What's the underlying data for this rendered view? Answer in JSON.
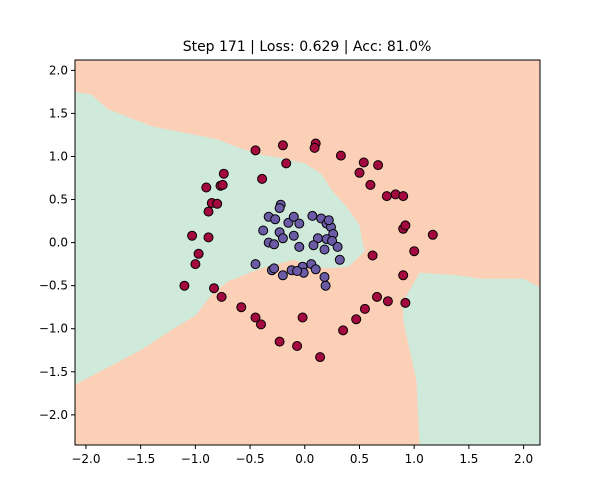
{
  "chart_data": {
    "type": "scatter",
    "title": "Step 171 | Loss: 0.629 | Acc: 81.0%",
    "xlabel": "",
    "ylabel": "",
    "xlim": [
      -2.1,
      2.15
    ],
    "ylim": [
      -2.35,
      2.12
    ],
    "xticks": [
      -2.0,
      -1.5,
      -1.0,
      -0.5,
      0.0,
      0.5,
      1.0,
      1.5,
      2.0
    ],
    "xtick_labels": [
      "−2.0",
      "−1.5",
      "−1.0",
      "−0.5",
      "0.0",
      "0.5",
      "1.0",
      "1.5",
      "2.0"
    ],
    "yticks": [
      2.0,
      1.5,
      1.0,
      0.5,
      0.0,
      -0.5,
      -1.0,
      -1.5,
      -2.0
    ],
    "ytick_labels": [
      "2.0",
      "1.5",
      "1.0",
      "0.5",
      "0.0",
      "−0.5",
      "−1.0",
      "−1.5",
      "−2.0"
    ],
    "grid": false,
    "colors": {
      "region_outer": "#fbd0b7",
      "region_inner": "#cfeadb",
      "class_outer": "#a3093f",
      "class_inner": "#6b5ba6",
      "marker_edge": "#000000"
    },
    "decision_regions": {
      "background_class": "outer",
      "inner_class_regions": [
        [
          [
            -2.1,
            1.75
          ],
          [
            -1.95,
            1.72
          ],
          [
            -1.8,
            1.55
          ],
          [
            -1.6,
            1.45
          ],
          [
            -1.4,
            1.35
          ],
          [
            -1.2,
            1.3
          ],
          [
            -1.0,
            1.25
          ],
          [
            -0.8,
            1.2
          ],
          [
            -0.6,
            1.1
          ],
          [
            -0.4,
            1.02
          ],
          [
            -0.2,
            0.98
          ],
          [
            0.0,
            0.92
          ],
          [
            0.15,
            0.8
          ],
          [
            0.25,
            0.6
          ],
          [
            0.38,
            0.42
          ],
          [
            0.5,
            0.2
          ],
          [
            0.52,
            0.05
          ],
          [
            0.55,
            -0.1
          ],
          [
            0.4,
            -0.28
          ],
          [
            0.2,
            -0.3
          ],
          [
            0.0,
            -0.25
          ],
          [
            -0.1,
            -0.2
          ],
          [
            -0.4,
            -0.3
          ],
          [
            -0.7,
            -0.45
          ],
          [
            -0.85,
            -0.6
          ],
          [
            -1.0,
            -0.85
          ],
          [
            -1.2,
            -1.0
          ],
          [
            -1.5,
            -1.25
          ],
          [
            -1.8,
            -1.45
          ],
          [
            -2.1,
            -1.65
          ]
        ],
        [
          [
            0.9,
            -0.68
          ],
          [
            1.05,
            -0.35
          ],
          [
            1.4,
            -0.38
          ],
          [
            1.6,
            -0.42
          ],
          [
            2.0,
            -0.42
          ],
          [
            2.15,
            -0.52
          ],
          [
            2.15,
            -2.35
          ],
          [
            1.05,
            -2.35
          ],
          [
            1.02,
            -1.6
          ],
          [
            0.95,
            -1.2
          ],
          [
            0.9,
            -0.9
          ]
        ]
      ]
    },
    "series": [
      {
        "class": "outer",
        "points": [
          [
            -0.45,
            1.07
          ],
          [
            -0.2,
            1.13
          ],
          [
            0.1,
            1.15
          ],
          [
            0.09,
            1.1
          ],
          [
            -0.17,
            0.92
          ],
          [
            0.33,
            1.01
          ],
          [
            0.54,
            0.93
          ],
          [
            0.67,
            0.9
          ],
          [
            0.5,
            0.81
          ],
          [
            0.6,
            0.67
          ],
          [
            0.75,
            0.54
          ],
          [
            0.83,
            0.56
          ],
          [
            0.9,
            0.54
          ],
          [
            -0.74,
            0.8
          ],
          [
            -0.39,
            0.74
          ],
          [
            -0.9,
            0.64
          ],
          [
            -0.77,
            0.66
          ],
          [
            -0.75,
            0.67
          ],
          [
            -0.85,
            0.46
          ],
          [
            -0.8,
            0.45
          ],
          [
            -0.88,
            0.36
          ],
          [
            -1.03,
            0.08
          ],
          [
            -0.88,
            0.06
          ],
          [
            -0.97,
            -0.13
          ],
          [
            -1.0,
            -0.25
          ],
          [
            -1.1,
            -0.5
          ],
          [
            -0.83,
            -0.53
          ],
          [
            -0.76,
            -0.63
          ],
          [
            -0.58,
            -0.75
          ],
          [
            -0.45,
            -0.87
          ],
          [
            -0.4,
            -0.95
          ],
          [
            -0.23,
            -1.15
          ],
          [
            -0.07,
            -1.2
          ],
          [
            -0.02,
            -0.87
          ],
          [
            0.14,
            -1.33
          ],
          [
            0.35,
            -1.02
          ],
          [
            0.47,
            -0.89
          ],
          [
            0.55,
            -0.77
          ],
          [
            0.66,
            -0.63
          ],
          [
            0.76,
            -0.68
          ],
          [
            0.92,
            -0.7
          ],
          [
            0.9,
            0.16
          ],
          [
            0.92,
            0.2
          ],
          [
            0.9,
            -0.38
          ],
          [
            1.0,
            -0.1
          ],
          [
            1.17,
            0.09
          ],
          [
            0.62,
            -0.15
          ]
        ]
      },
      {
        "class": "inner",
        "points": [
          [
            -0.22,
            0.44
          ],
          [
            -0.23,
            0.4
          ],
          [
            -0.33,
            0.3
          ],
          [
            -0.27,
            0.27
          ],
          [
            -0.38,
            0.14
          ],
          [
            -0.33,
            0.0
          ],
          [
            -0.23,
            0.12
          ],
          [
            -0.15,
            0.23
          ],
          [
            -0.1,
            0.3
          ],
          [
            -0.2,
            0.05
          ],
          [
            -0.28,
            -0.02
          ],
          [
            -0.05,
            0.22
          ],
          [
            -0.1,
            0.08
          ],
          [
            0.07,
            0.31
          ],
          [
            0.15,
            0.28
          ],
          [
            0.2,
            0.22
          ],
          [
            0.24,
            0.18
          ],
          [
            0.22,
            0.26
          ],
          [
            0.26,
            0.1
          ],
          [
            0.12,
            0.05
          ],
          [
            0.2,
            0.04
          ],
          [
            0.25,
            0.02
          ],
          [
            -0.05,
            -0.05
          ],
          [
            0.18,
            -0.08
          ],
          [
            0.08,
            -0.03
          ],
          [
            0.3,
            -0.05
          ],
          [
            0.32,
            -0.2
          ],
          [
            0.06,
            -0.25
          ],
          [
            -0.12,
            -0.32
          ],
          [
            -0.45,
            -0.25
          ],
          [
            -0.3,
            -0.32
          ],
          [
            -0.02,
            -0.28
          ],
          [
            -0.01,
            -0.35
          ],
          [
            0.1,
            -0.31
          ],
          [
            -0.07,
            -0.33
          ],
          [
            0.18,
            -0.4
          ],
          [
            -0.2,
            -0.38
          ],
          [
            0.19,
            -0.5
          ],
          [
            -0.28,
            -0.3
          ]
        ]
      }
    ]
  }
}
